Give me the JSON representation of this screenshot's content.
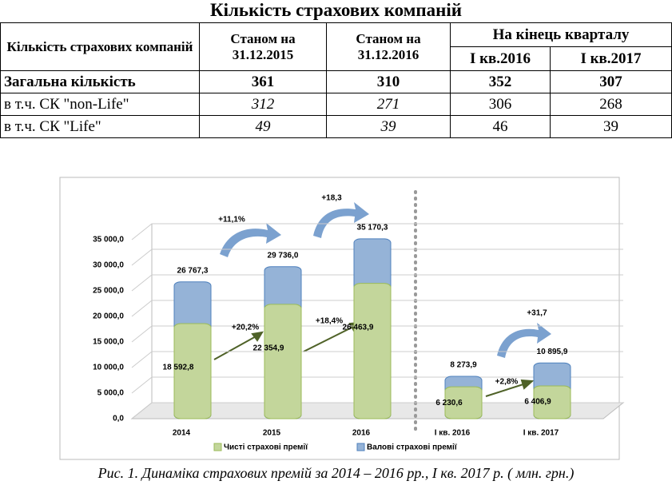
{
  "title": "Кількість страхових компаній",
  "table": {
    "header": [
      "Кількість страхових компаній",
      "Станом на 31.12.2015",
      "Станом на 31.12.2016",
      "На кінець кварталу",
      "I кв.2016",
      "I кв.2017"
    ],
    "rows": [
      [
        "Загальна кількість",
        361,
        310,
        352,
        307
      ],
      [
        "в т.ч. СК \"non-Life\"",
        312,
        271,
        306,
        268
      ],
      [
        "в т.ч. СК \"Life\"",
        49,
        39,
        46,
        39
      ]
    ]
  },
  "chart_data": {
    "type": "bar",
    "categories": [
      "2014",
      "2015",
      "2016",
      "I кв. 2016",
      "I кв. 2017"
    ],
    "series": [
      {
        "name": "Чисті страхові премії",
        "color": "#c3d69b",
        "values": [
          18592.8,
          22354.9,
          26463.9,
          6230.6,
          6406.9
        ],
        "value_labels": [
          "18 592,8",
          "22 354,9",
          "26 463,9",
          "6 230,6",
          "6 406,9"
        ]
      },
      {
        "name": "Валові страхові премії",
        "color": "#95b3d7",
        "values": [
          26767.3,
          29736.0,
          35170.3,
          8273.9,
          10895.9
        ],
        "value_labels": [
          "26 767,3",
          "29 736,0",
          "35 170,3",
          "8 273,9",
          "10 895,9"
        ]
      }
    ],
    "ylim": [
      0,
      35000
    ],
    "yticks": [
      {
        "value": 0,
        "label": "0,0"
      },
      {
        "value": 5000,
        "label": "5 000,0"
      },
      {
        "value": 10000,
        "label": "10 000,0"
      },
      {
        "value": 15000,
        "label": "15 000,0"
      },
      {
        "value": 20000,
        "label": "20 000,0"
      },
      {
        "value": 25000,
        "label": "25 000,0"
      },
      {
        "value": 30000,
        "label": "30 000,0"
      },
      {
        "value": 35000,
        "label": "35 000,0"
      }
    ],
    "grid": true,
    "annotations": [
      "+11,1%",
      "+18,3",
      "+20,2%",
      "+18,4%",
      "+2,8%",
      "+31,7"
    ]
  },
  "caption": "Рис. 1. Динаміка страхових премій за 2014 – 2016 рр.,  I кв. 2017 р. ( млн. грн.)"
}
